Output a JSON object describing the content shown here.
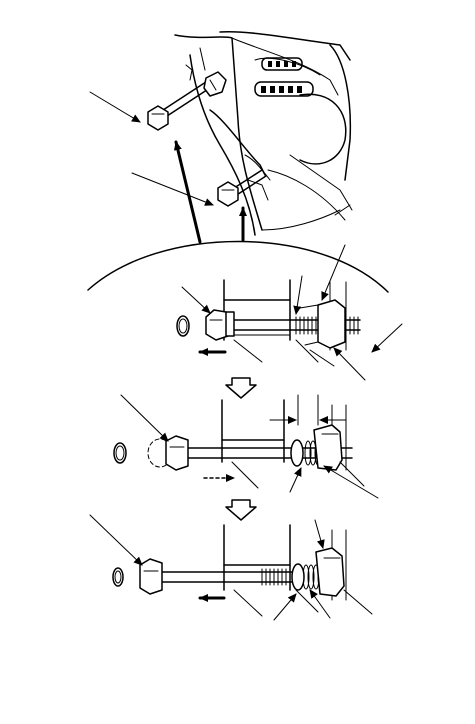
{
  "figure": {
    "type": "service-manual-illustration",
    "style": "black line art on white",
    "steps": 3,
    "icons": [
      "leader-arrow",
      "direction-arrow",
      "rotation-arrow",
      "step-down-arrow",
      "bolt",
      "nut",
      "spring",
      "bushing"
    ],
    "colors": {
      "ink": "#000000",
      "paper": "#ffffff"
    }
  }
}
